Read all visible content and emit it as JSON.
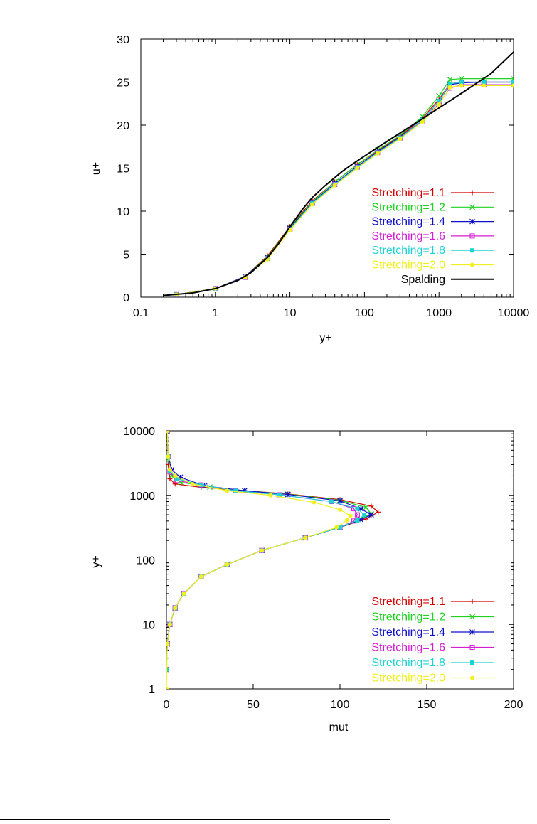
{
  "chart_data": [
    {
      "type": "line",
      "xlabel": "y+",
      "ylabel": "u+",
      "xscale": "log",
      "xlim": [
        0.1,
        10000
      ],
      "ylim": [
        0,
        30
      ],
      "xticks": [
        "0.1",
        "1",
        "10",
        "100",
        "1000",
        "10000"
      ],
      "yticks": [
        "0",
        "5",
        "10",
        "15",
        "20",
        "25",
        "30"
      ],
      "grid": false,
      "legend_position": "bottom-right",
      "series": [
        {
          "name": "Stretching=1.1",
          "color": "#d40000",
          "marker": "plus",
          "x": [
            0.3,
            1,
            2.5,
            5,
            10,
            20,
            40,
            80,
            150,
            300,
            600,
            1000,
            1400,
            2000,
            4000,
            10000
          ],
          "y": [
            0.3,
            1,
            2.4,
            4.8,
            8.2,
            11.2,
            13.4,
            15.4,
            17.0,
            18.7,
            20.8,
            23.0,
            24.8,
            25.0,
            25.0,
            25.0
          ]
        },
        {
          "name": "Stretching=1.2",
          "color": "#1fd21f",
          "marker": "cross",
          "x": [
            0.3,
            1,
            2.5,
            5,
            10,
            20,
            40,
            80,
            150,
            300,
            600,
            1000,
            1400,
            2000,
            4000,
            10000
          ],
          "y": [
            0.3,
            1,
            2.4,
            4.7,
            8.1,
            11.1,
            13.4,
            15.4,
            17.1,
            18.8,
            21.0,
            23.4,
            25.3,
            25.4,
            25.4,
            25.4
          ]
        },
        {
          "name": "Stretching=1.4",
          "color": "#1010c8",
          "marker": "star",
          "x": [
            0.3,
            1,
            2.5,
            5,
            10,
            20,
            40,
            80,
            150,
            300,
            600,
            1000,
            1400,
            2000,
            4000,
            10000
          ],
          "y": [
            0.3,
            1,
            2.4,
            4.6,
            8.0,
            11.0,
            13.2,
            15.2,
            16.9,
            18.6,
            20.6,
            22.8,
            24.7,
            24.9,
            25.0,
            25.0
          ]
        },
        {
          "name": "Stretching=1.6",
          "color": "#d21fd2",
          "marker": "square",
          "x": [
            0.3,
            1,
            2.5,
            5,
            10,
            20,
            40,
            80,
            150,
            300,
            600,
            1000,
            1400,
            2000,
            4000,
            10000
          ],
          "y": [
            0.3,
            1,
            2.3,
            4.5,
            7.9,
            10.9,
            13.1,
            15.1,
            16.8,
            18.5,
            20.5,
            22.5,
            24.3,
            24.7,
            24.7,
            24.7
          ]
        },
        {
          "name": "Stretching=1.8",
          "color": "#1fd2d2",
          "marker": "filled-square",
          "x": [
            0.3,
            1,
            2.5,
            5,
            10,
            20,
            40,
            80,
            150,
            300,
            600,
            1000,
            1400,
            2000,
            4000,
            10000
          ],
          "y": [
            0.3,
            1,
            2.3,
            4.5,
            7.9,
            10.9,
            13.1,
            15.1,
            16.8,
            18.5,
            20.6,
            22.8,
            24.8,
            25.0,
            25.0,
            25.0
          ]
        },
        {
          "name": "Stretching=2.0",
          "color": "#f0f020",
          "marker": "filled-circle",
          "x": [
            0.3,
            1,
            2.5,
            5,
            10,
            20,
            40,
            80,
            150,
            300,
            600,
            1000,
            1400,
            2000,
            4000,
            10000
          ],
          "y": [
            0.3,
            1,
            2.3,
            4.4,
            7.8,
            10.8,
            13.0,
            15.0,
            16.7,
            18.4,
            20.4,
            22.4,
            24.4,
            24.6,
            24.6,
            24.6
          ]
        },
        {
          "name": "Spalding",
          "color": "#000000",
          "marker": "none",
          "x": [
            0.2,
            0.5,
            1,
            2,
            3,
            5,
            7,
            10,
            15,
            20,
            30,
            50,
            70,
            100,
            200,
            500,
            1000,
            2000,
            5000,
            10000
          ],
          "y": [
            0.2,
            0.5,
            1.0,
            1.95,
            2.85,
            4.6,
            6.2,
            8.2,
            10.3,
            11.6,
            13.0,
            14.6,
            15.5,
            16.4,
            18.1,
            20.3,
            22.0,
            23.7,
            26.0,
            28.5
          ]
        }
      ]
    },
    {
      "type": "line",
      "xlabel": "mut",
      "ylabel": "y+",
      "yscale": "log",
      "xlim": [
        0,
        200
      ],
      "ylim": [
        1,
        10000
      ],
      "xticks": [
        "0",
        "50",
        "100",
        "150",
        "200"
      ],
      "yticks": [
        "1",
        "10",
        "100",
        "1000",
        "10000"
      ],
      "grid": false,
      "legend_position": "bottom-right",
      "series": [
        {
          "name": "Stretching=1.1",
          "color": "#d40000",
          "marker": "plus",
          "x": [
            0,
            0.5,
            2,
            5,
            10,
            20,
            35,
            55,
            80,
            100,
            115,
            122,
            118,
            100,
            70,
            45,
            20,
            5,
            2,
            1,
            0.5
          ],
          "y": [
            2,
            5,
            10,
            18,
            30,
            55,
            85,
            140,
            220,
            320,
            430,
            550,
            680,
            860,
            1050,
            1180,
            1330,
            1500,
            1800,
            3000,
            10000
          ]
        },
        {
          "name": "Stretching=1.2",
          "color": "#1fd21f",
          "marker": "cross",
          "x": [
            0,
            0.5,
            2,
            5,
            10,
            20,
            35,
            55,
            80,
            100,
            112,
            118,
            115,
            100,
            70,
            45,
            25,
            8,
            3,
            1,
            0.5
          ],
          "y": [
            2,
            5,
            10,
            18,
            30,
            55,
            85,
            140,
            220,
            320,
            430,
            520,
            650,
            840,
            1040,
            1180,
            1340,
            1600,
            2000,
            3500,
            10000
          ]
        },
        {
          "name": "Stretching=1.4",
          "color": "#1010c8",
          "marker": "star",
          "x": [
            0,
            0.5,
            2,
            5,
            10,
            20,
            35,
            55,
            80,
            100,
            112,
            118,
            112,
            100,
            70,
            45,
            22,
            8,
            3,
            1,
            0.5
          ],
          "y": [
            2,
            5,
            10,
            18,
            30,
            55,
            85,
            140,
            220,
            320,
            420,
            500,
            620,
            820,
            1030,
            1180,
            1400,
            1900,
            2500,
            4000,
            10000
          ]
        },
        {
          "name": "Stretching=1.6",
          "color": "#d21fd2",
          "marker": "square",
          "x": [
            0,
            0.5,
            2,
            5,
            10,
            20,
            35,
            55,
            80,
            100,
            108,
            110,
            108,
            95,
            65,
            40,
            20,
            6,
            2,
            1,
            0.5
          ],
          "y": [
            2,
            5,
            10,
            18,
            30,
            55,
            85,
            140,
            220,
            320,
            400,
            500,
            620,
            800,
            1020,
            1180,
            1450,
            1700,
            2300,
            4000,
            10000
          ]
        },
        {
          "name": "Stretching=1.8",
          "color": "#1fd2d2",
          "marker": "filled-square",
          "x": [
            0,
            0.5,
            2,
            5,
            10,
            20,
            35,
            55,
            80,
            100,
            110,
            114,
            110,
            95,
            65,
            40,
            20,
            6,
            2,
            1,
            0.5
          ],
          "y": [
            2,
            5,
            10,
            18,
            30,
            55,
            85,
            140,
            220,
            320,
            410,
            500,
            620,
            800,
            1020,
            1180,
            1450,
            1800,
            2400,
            4000,
            10000
          ]
        },
        {
          "name": "Stretching=2.0",
          "color": "#f0f020",
          "marker": "filled-circle",
          "x": [
            0,
            0.5,
            2,
            5,
            10,
            20,
            35,
            55,
            80,
            98,
            104,
            106,
            100,
            85,
            60,
            35,
            15,
            5,
            2,
            1,
            0.5
          ],
          "y": [
            1,
            5,
            10,
            18,
            30,
            55,
            85,
            140,
            220,
            320,
            410,
            480,
            600,
            780,
            1000,
            1180,
            1500,
            2000,
            2500,
            4000,
            10000
          ]
        }
      ]
    }
  ]
}
